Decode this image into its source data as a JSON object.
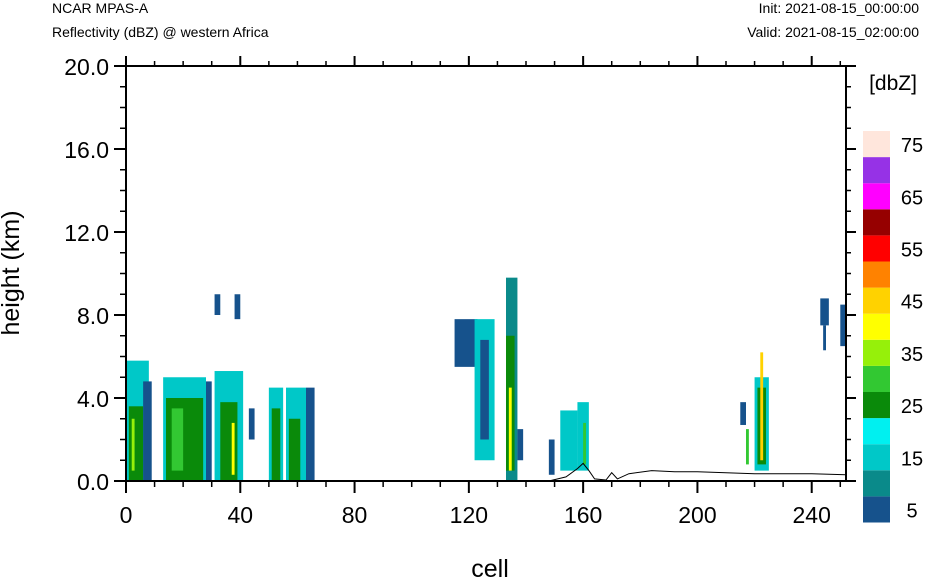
{
  "header": {
    "model": "NCAR MPAS-A",
    "subtitle": "Reflectivity (dBZ) @ western Africa",
    "init": "Init: 2021-08-15_00:00:00",
    "valid": "Valid: 2021-08-15_02:00:00"
  },
  "chart_data": {
    "type": "heatmap",
    "title": "Reflectivity (dBZ) @ western Africa",
    "xlabel": "cell",
    "ylabel": "height (km)",
    "xlim": [
      0,
      252
    ],
    "ylim": [
      0,
      20
    ],
    "x_ticks": [
      "0",
      "40",
      "80",
      "120",
      "160",
      "200",
      "240"
    ],
    "y_ticks": [
      "0.0",
      "4.0",
      "8.0",
      "12.0",
      "16.0",
      "20.0"
    ],
    "colorbar": {
      "label": "[dbZ]",
      "tick_labels": [
        "5",
        "15",
        "25",
        "35",
        "45",
        "55",
        "65",
        "75"
      ],
      "levels": [
        5,
        10,
        15,
        20,
        25,
        30,
        35,
        40,
        45,
        50,
        55,
        60,
        65,
        70,
        75
      ],
      "colors": [
        "#16528c",
        "#0a8a8a",
        "#00c8c8",
        "#00f0f0",
        "#0a8a0a",
        "#32c832",
        "#96f00a",
        "#ffff00",
        "#ffd200",
        "#ff8200",
        "#ff0000",
        "#960000",
        "#ff00ff",
        "#9632e6",
        "#ffe6dc"
      ]
    },
    "cells": [
      {
        "x": [
          0,
          8
        ],
        "y": [
          0,
          5.8
        ],
        "dbz": 17
      },
      {
        "x": [
          1,
          6
        ],
        "y": [
          0,
          3.6
        ],
        "dbz": 27
      },
      {
        "x": [
          2,
          3
        ],
        "y": [
          0.5,
          3.0
        ],
        "dbz": 37
      },
      {
        "x": [
          6,
          9
        ],
        "y": [
          0,
          4.8
        ],
        "dbz": 7
      },
      {
        "x": [
          13,
          28
        ],
        "y": [
          0,
          5.0
        ],
        "dbz": 17
      },
      {
        "x": [
          14,
          27
        ],
        "y": [
          0,
          4.0
        ],
        "dbz": 27
      },
      {
        "x": [
          16,
          20
        ],
        "y": [
          0.5,
          3.5
        ],
        "dbz": 32
      },
      {
        "x": [
          28,
          30
        ],
        "y": [
          0,
          4.8
        ],
        "dbz": 7
      },
      {
        "x": [
          31,
          33
        ],
        "y": [
          8.0,
          9.0
        ],
        "dbz": 7
      },
      {
        "x": [
          38,
          40
        ],
        "y": [
          7.8,
          9.0
        ],
        "dbz": 7
      },
      {
        "x": [
          31,
          41
        ],
        "y": [
          0,
          5.3
        ],
        "dbz": 17
      },
      {
        "x": [
          33,
          39
        ],
        "y": [
          0,
          3.8
        ],
        "dbz": 27
      },
      {
        "x": [
          37,
          38
        ],
        "y": [
          0.3,
          2.8
        ],
        "dbz": 42
      },
      {
        "x": [
          43,
          45
        ],
        "y": [
          2.0,
          3.5
        ],
        "dbz": 7
      },
      {
        "x": [
          50,
          55
        ],
        "y": [
          0,
          4.5
        ],
        "dbz": 17
      },
      {
        "x": [
          51,
          54
        ],
        "y": [
          0,
          3.5
        ],
        "dbz": 27
      },
      {
        "x": [
          56,
          63
        ],
        "y": [
          0,
          4.5
        ],
        "dbz": 17
      },
      {
        "x": [
          57,
          61
        ],
        "y": [
          0,
          3.0
        ],
        "dbz": 27
      },
      {
        "x": [
          63,
          66
        ],
        "y": [
          0,
          4.5
        ],
        "dbz": 7
      },
      {
        "x": [
          115,
          123
        ],
        "y": [
          5.5,
          7.8
        ],
        "dbz": 7
      },
      {
        "x": [
          122,
          129
        ],
        "y": [
          1.0,
          7.8
        ],
        "dbz": 17
      },
      {
        "x": [
          124,
          127
        ],
        "y": [
          2.0,
          6.8
        ],
        "dbz": 7
      },
      {
        "x": [
          133,
          137
        ],
        "y": [
          0,
          9.8
        ],
        "dbz": 12
      },
      {
        "x": [
          133,
          136
        ],
        "y": [
          0.5,
          7.0
        ],
        "dbz": 27
      },
      {
        "x": [
          134,
          135
        ],
        "y": [
          0.5,
          4.5
        ],
        "dbz": 42
      },
      {
        "x": [
          137,
          139
        ],
        "y": [
          1.0,
          2.5
        ],
        "dbz": 7
      },
      {
        "x": [
          148,
          150
        ],
        "y": [
          0.3,
          2.0
        ],
        "dbz": 7
      },
      {
        "x": [
          152,
          158
        ],
        "y": [
          0.5,
          3.4
        ],
        "dbz": 17
      },
      {
        "x": [
          158,
          162
        ],
        "y": [
          0.5,
          3.8
        ],
        "dbz": 17
      },
      {
        "x": [
          160,
          161
        ],
        "y": [
          0.8,
          2.8
        ],
        "dbz": 32
      },
      {
        "x": [
          215,
          217
        ],
        "y": [
          2.7,
          3.8
        ],
        "dbz": 7
      },
      {
        "x": [
          217,
          218
        ],
        "y": [
          0.8,
          2.5
        ],
        "dbz": 32
      },
      {
        "x": [
          220,
          225
        ],
        "y": [
          0.5,
          5.0
        ],
        "dbz": 17
      },
      {
        "x": [
          221,
          224
        ],
        "y": [
          0.8,
          4.5
        ],
        "dbz": 27
      },
      {
        "x": [
          222,
          223
        ],
        "y": [
          1.0,
          6.2
        ],
        "dbz": 47
      },
      {
        "x": [
          243,
          246
        ],
        "y": [
          7.5,
          8.8
        ],
        "dbz": 7
      },
      {
        "x": [
          244,
          245
        ],
        "y": [
          6.3,
          7.5
        ],
        "dbz": 7
      },
      {
        "x": [
          250,
          252
        ],
        "y": [
          6.5,
          8.5
        ],
        "dbz": 7
      }
    ],
    "terrain": [
      [
        0,
        0
      ],
      [
        148,
        0
      ],
      [
        154,
        0.2
      ],
      [
        158,
        0.6
      ],
      [
        160,
        0.85
      ],
      [
        162,
        0.5
      ],
      [
        164,
        0.1
      ],
      [
        168,
        0.05
      ],
      [
        170,
        0.4
      ],
      [
        172,
        0.1
      ],
      [
        176,
        0.35
      ],
      [
        184,
        0.5
      ],
      [
        192,
        0.45
      ],
      [
        200,
        0.45
      ],
      [
        210,
        0.4
      ],
      [
        220,
        0.35
      ],
      [
        230,
        0.35
      ],
      [
        240,
        0.35
      ],
      [
        252,
        0.3
      ]
    ]
  }
}
